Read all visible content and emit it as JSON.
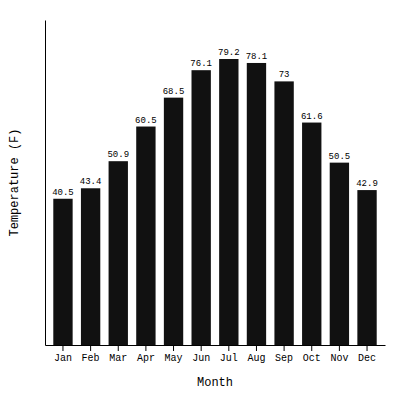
{
  "chart_data": {
    "type": "bar",
    "categories": [
      "Jan",
      "Feb",
      "Mar",
      "Apr",
      "May",
      "Jun",
      "Jul",
      "Aug",
      "Sep",
      "Oct",
      "Nov",
      "Dec"
    ],
    "values": [
      40.5,
      43.4,
      50.9,
      60.5,
      68.5,
      76.1,
      79.2,
      78.1,
      73.0,
      61.6,
      50.5,
      42.9
    ],
    "color": "#111111",
    "x_label": "Month",
    "y_label": "Temperature (F)",
    "ylim": [
      0,
      90
    ],
    "data_labels": true,
    "tick_labels": "x",
    "grid": false
  }
}
